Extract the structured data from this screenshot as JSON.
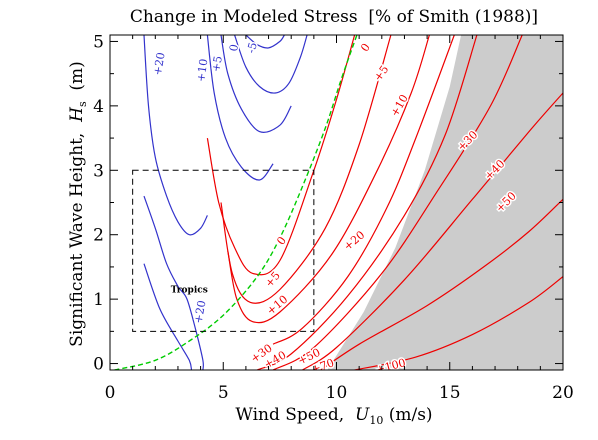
{
  "chart_data": {
    "type": "line",
    "title": "Change in Modeled Stress  [% of Smith (1988)]",
    "xlabel": {
      "text": "Wind Speed,  ",
      "symbol": "U",
      "subscript": "10",
      "unit": " (m/s)"
    },
    "ylabel": {
      "text": "Significant Wave Height,  ",
      "symbol": "H",
      "subscript": "s",
      "unit": "  (m)"
    },
    "xlim": [
      0,
      20
    ],
    "ylim": [
      -0.1,
      5.1
    ],
    "x_ticks": [
      0,
      5,
      10,
      15,
      20
    ],
    "y_ticks": [
      0,
      1,
      2,
      3,
      4,
      5
    ],
    "grid": false,
    "colors": {
      "negative_contours": "#3333cc",
      "positive_contours": "#ee0000",
      "reference_curve": "#00cc00",
      "shaded_region": "#cccccc",
      "box": "#000000"
    },
    "shaded_region": {
      "description": "excluded region",
      "boundary": [
        [
          9.6,
          -0.1
        ],
        [
          11.2,
          0.8
        ],
        [
          12.6,
          1.8
        ],
        [
          13.9,
          3.0
        ],
        [
          15.0,
          4.3
        ],
        [
          15.5,
          5.1
        ],
        [
          20,
          5.1
        ],
        [
          20,
          -0.1
        ]
      ]
    },
    "box": {
      "x": [
        1.0,
        9.0
      ],
      "y": [
        0.5,
        3.0
      ],
      "label": "Tropics",
      "label_at": [
        3.5,
        1.1
      ]
    },
    "reference_curve": {
      "style": "dashed",
      "points": [
        [
          0.2,
          -0.1
        ],
        [
          2.0,
          0.05
        ],
        [
          3.5,
          0.35
        ],
        [
          5.0,
          0.75
        ],
        [
          6.5,
          1.35
        ],
        [
          7.5,
          1.95
        ],
        [
          8.5,
          2.75
        ],
        [
          9.5,
          3.65
        ],
        [
          10.2,
          4.4
        ],
        [
          10.9,
          5.1
        ]
      ]
    },
    "series": [
      {
        "name": "+20",
        "color": "blue",
        "points": [
          [
            1.5,
            5.1
          ],
          [
            1.7,
            4.0
          ],
          [
            2.0,
            3.2
          ],
          [
            2.5,
            2.6
          ],
          [
            3.0,
            2.2
          ],
          [
            3.5,
            2.0
          ],
          [
            4.0,
            2.1
          ],
          [
            4.3,
            2.3
          ]
        ],
        "labels": [
          {
            "text": "+20",
            "at": [
              2.2,
              4.65
            ],
            "angle": -80
          }
        ]
      },
      {
        "name": "+10",
        "color": "blue",
        "points": [
          [
            4.3,
            5.1
          ],
          [
            4.6,
            4.2
          ],
          [
            5.1,
            3.5
          ],
          [
            5.8,
            3.05
          ],
          [
            6.6,
            2.85
          ],
          [
            7.2,
            3.1
          ]
        ],
        "labels": [
          {
            "text": "+10",
            "at": [
              4.1,
              4.55
            ],
            "angle": -82
          }
        ]
      },
      {
        "name": "+5",
        "color": "blue",
        "points": [
          [
            4.9,
            5.1
          ],
          [
            5.2,
            4.5
          ],
          [
            5.8,
            3.95
          ],
          [
            6.6,
            3.6
          ],
          [
            7.5,
            3.7
          ],
          [
            8.0,
            4.0
          ]
        ],
        "labels": [
          {
            "text": "+5",
            "at": [
              4.75,
              4.65
            ],
            "angle": -80
          }
        ]
      },
      {
        "name": "0",
        "color": "blue",
        "points": [
          [
            5.5,
            5.1
          ],
          [
            6.0,
            4.6
          ],
          [
            6.6,
            4.3
          ],
          [
            7.3,
            4.2
          ],
          [
            7.9,
            4.35
          ],
          [
            8.4,
            4.75
          ],
          [
            8.7,
            5.1
          ]
        ],
        "labels": [
          {
            "text": "0",
            "at": [
              5.5,
              4.9
            ],
            "angle": -80
          }
        ]
      },
      {
        "name": "-5",
        "color": "blue",
        "points": [
          [
            6.0,
            5.1
          ],
          [
            6.5,
            4.95
          ],
          [
            7.0,
            4.9
          ],
          [
            7.5,
            5.0
          ],
          [
            7.7,
            5.1
          ]
        ],
        "labels": [
          {
            "text": "-5",
            "at": [
              6.3,
              4.9
            ],
            "angle": -75
          }
        ]
      },
      {
        "name": "+20",
        "color": "blue",
        "points": [
          [
            1.5,
            2.6
          ],
          [
            2.0,
            2.1
          ],
          [
            2.5,
            1.55
          ],
          [
            3.0,
            1.2
          ],
          [
            3.4,
            1.0
          ],
          [
            3.8,
            0.5
          ],
          [
            4.1,
            0.05
          ],
          [
            4.1,
            -0.1
          ]
        ],
        "labels": [
          {
            "text": "+20",
            "at": [
              4.0,
              0.8
            ],
            "angle": -80
          }
        ]
      },
      {
        "name": "+10",
        "color": "blue",
        "points": [
          [
            1.5,
            1.55
          ],
          [
            2.2,
            0.85
          ],
          [
            3.0,
            0.35
          ],
          [
            3.5,
            0.05
          ],
          [
            3.6,
            -0.1
          ]
        ],
        "labels": []
      },
      {
        "name": "0",
        "color": "red",
        "points": [
          [
            4.3,
            3.5
          ],
          [
            4.8,
            2.5
          ],
          [
            5.5,
            1.8
          ],
          [
            6.3,
            1.4
          ],
          [
            7.5,
            1.6
          ],
          [
            9.0,
            3.0
          ],
          [
            10.0,
            4.1
          ],
          [
            10.8,
            5.1
          ]
        ],
        "labels": [
          {
            "text": "0",
            "at": [
              7.6,
              1.9
            ],
            "angle": -55
          },
          {
            "text": "0",
            "at": [
              11.3,
              4.9
            ],
            "angle": -55
          }
        ]
      },
      {
        "name": "+5",
        "color": "red",
        "points": [
          [
            4.9,
            2.5
          ],
          [
            5.4,
            1.4
          ],
          [
            6.2,
            0.95
          ],
          [
            7.5,
            1.15
          ],
          [
            9.5,
            2.1
          ],
          [
            11.0,
            3.4
          ],
          [
            12.4,
            5.1
          ]
        ],
        "labels": [
          {
            "text": "+5",
            "at": [
              7.2,
              1.3
            ],
            "angle": -50
          },
          {
            "text": "+5",
            "at": [
              12.0,
              4.5
            ],
            "angle": -55
          }
        ]
      },
      {
        "name": "+10",
        "color": "red",
        "points": [
          [
            5.2,
            1.75
          ],
          [
            5.6,
            1.0
          ],
          [
            6.3,
            0.65
          ],
          [
            7.5,
            0.8
          ],
          [
            9.8,
            1.7
          ],
          [
            11.8,
            3.0
          ],
          [
            13.3,
            4.2
          ],
          [
            14.1,
            5.1
          ]
        ],
        "labels": [
          {
            "text": "+10",
            "at": [
              7.4,
              0.9
            ],
            "angle": -40
          },
          {
            "text": "+10",
            "at": [
              12.8,
              4.0
            ],
            "angle": -60
          }
        ]
      },
      {
        "name": "+20",
        "color": "red",
        "points": [
          [
            7.2,
            0.3
          ],
          [
            8.5,
            0.55
          ],
          [
            10.5,
            1.35
          ],
          [
            12.2,
            2.4
          ],
          [
            13.5,
            3.5
          ],
          [
            15.2,
            5.1
          ]
        ],
        "labels": [
          {
            "text": "+20",
            "at": [
              10.8,
              1.9
            ],
            "angle": -40
          }
        ]
      },
      {
        "name": "+30",
        "color": "red",
        "points": [
          [
            6.5,
            -0.1
          ],
          [
            8.0,
            0.15
          ],
          [
            10.5,
            1.05
          ],
          [
            13.0,
            2.3
          ],
          [
            14.8,
            3.55
          ],
          [
            16.2,
            5.1
          ]
        ],
        "labels": [
          {
            "text": "+30",
            "at": [
              6.7,
              0.15
            ],
            "angle": -35
          },
          {
            "text": "+30",
            "at": [
              15.8,
              3.45
            ],
            "angle": -45
          }
        ]
      },
      {
        "name": "+40",
        "color": "red",
        "points": [
          [
            7.2,
            -0.1
          ],
          [
            9.0,
            0.25
          ],
          [
            12.0,
            1.4
          ],
          [
            14.5,
            2.7
          ],
          [
            16.8,
            4.0
          ],
          [
            18.2,
            5.1
          ]
        ],
        "labels": [
          {
            "text": "+40",
            "at": [
              7.3,
              0.05
            ],
            "angle": -30
          },
          {
            "text": "+40",
            "at": [
              17.0,
              3.0
            ],
            "angle": -45
          }
        ]
      },
      {
        "name": "+50",
        "color": "red",
        "points": [
          [
            8.5,
            -0.1
          ],
          [
            10.0,
            0.25
          ],
          [
            13.0,
            1.3
          ],
          [
            16.0,
            2.55
          ],
          [
            18.5,
            3.6
          ],
          [
            20.0,
            4.2
          ]
        ],
        "labels": [
          {
            "text": "+50",
            "at": [
              8.8,
              0.1
            ],
            "angle": -25
          },
          {
            "text": "+50",
            "at": [
              17.5,
              2.5
            ],
            "angle": -45
          }
        ]
      },
      {
        "name": "+70",
        "color": "red",
        "points": [
          [
            9.3,
            -0.1
          ],
          [
            11.0,
            0.3
          ],
          [
            14.0,
            0.9
          ],
          [
            16.5,
            1.5
          ],
          [
            18.5,
            2.05
          ],
          [
            20.0,
            2.55
          ]
        ],
        "labels": [
          {
            "text": "+70",
            "at": [
              9.4,
              -0.05
            ],
            "angle": -20
          }
        ]
      },
      {
        "name": "+100",
        "color": "red",
        "points": [
          [
            10.8,
            -0.1
          ],
          [
            13.5,
            0.1
          ],
          [
            16.0,
            0.45
          ],
          [
            18.5,
            0.95
          ],
          [
            20.0,
            1.35
          ]
        ],
        "labels": [
          {
            "text": "+100",
            "at": [
              12.4,
              -0.05
            ],
            "angle": -15
          }
        ]
      }
    ]
  }
}
